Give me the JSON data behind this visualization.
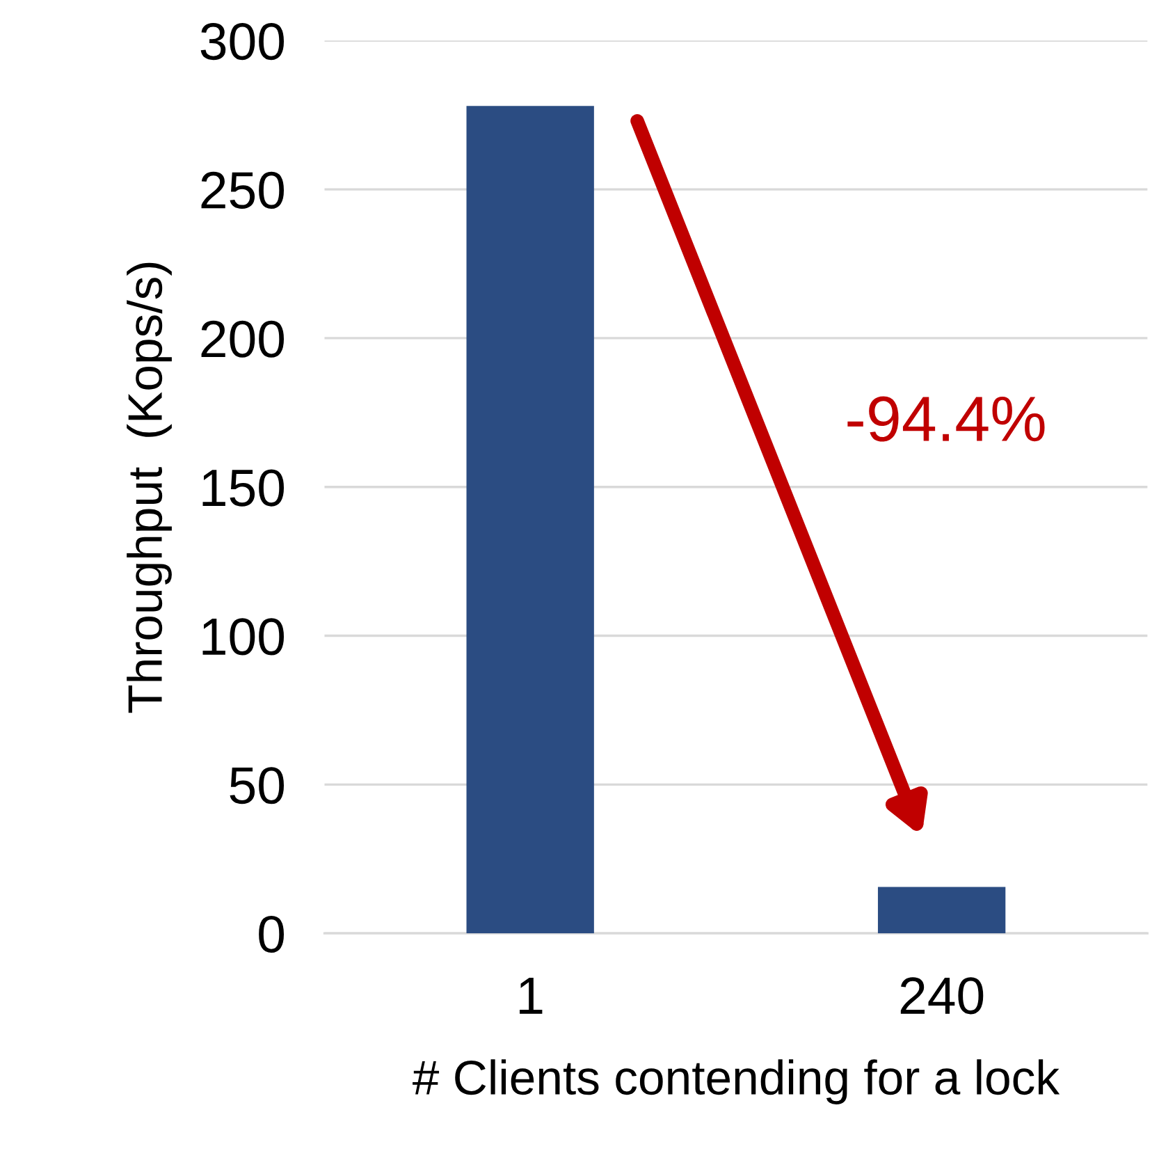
{
  "chart_data": {
    "type": "bar",
    "xlabel": "# Clients contending for a lock",
    "ylabel": "Throughput  (Kops/s)",
    "categories": [
      "1",
      "240"
    ],
    "values": [
      278,
      15.6
    ],
    "color": "#2b4c82",
    "ylim": [
      0,
      300
    ],
    "yticks": [
      0,
      50,
      100,
      150,
      200,
      250,
      300
    ],
    "grid": "y",
    "annotations": [
      "-94.4%"
    ]
  }
}
